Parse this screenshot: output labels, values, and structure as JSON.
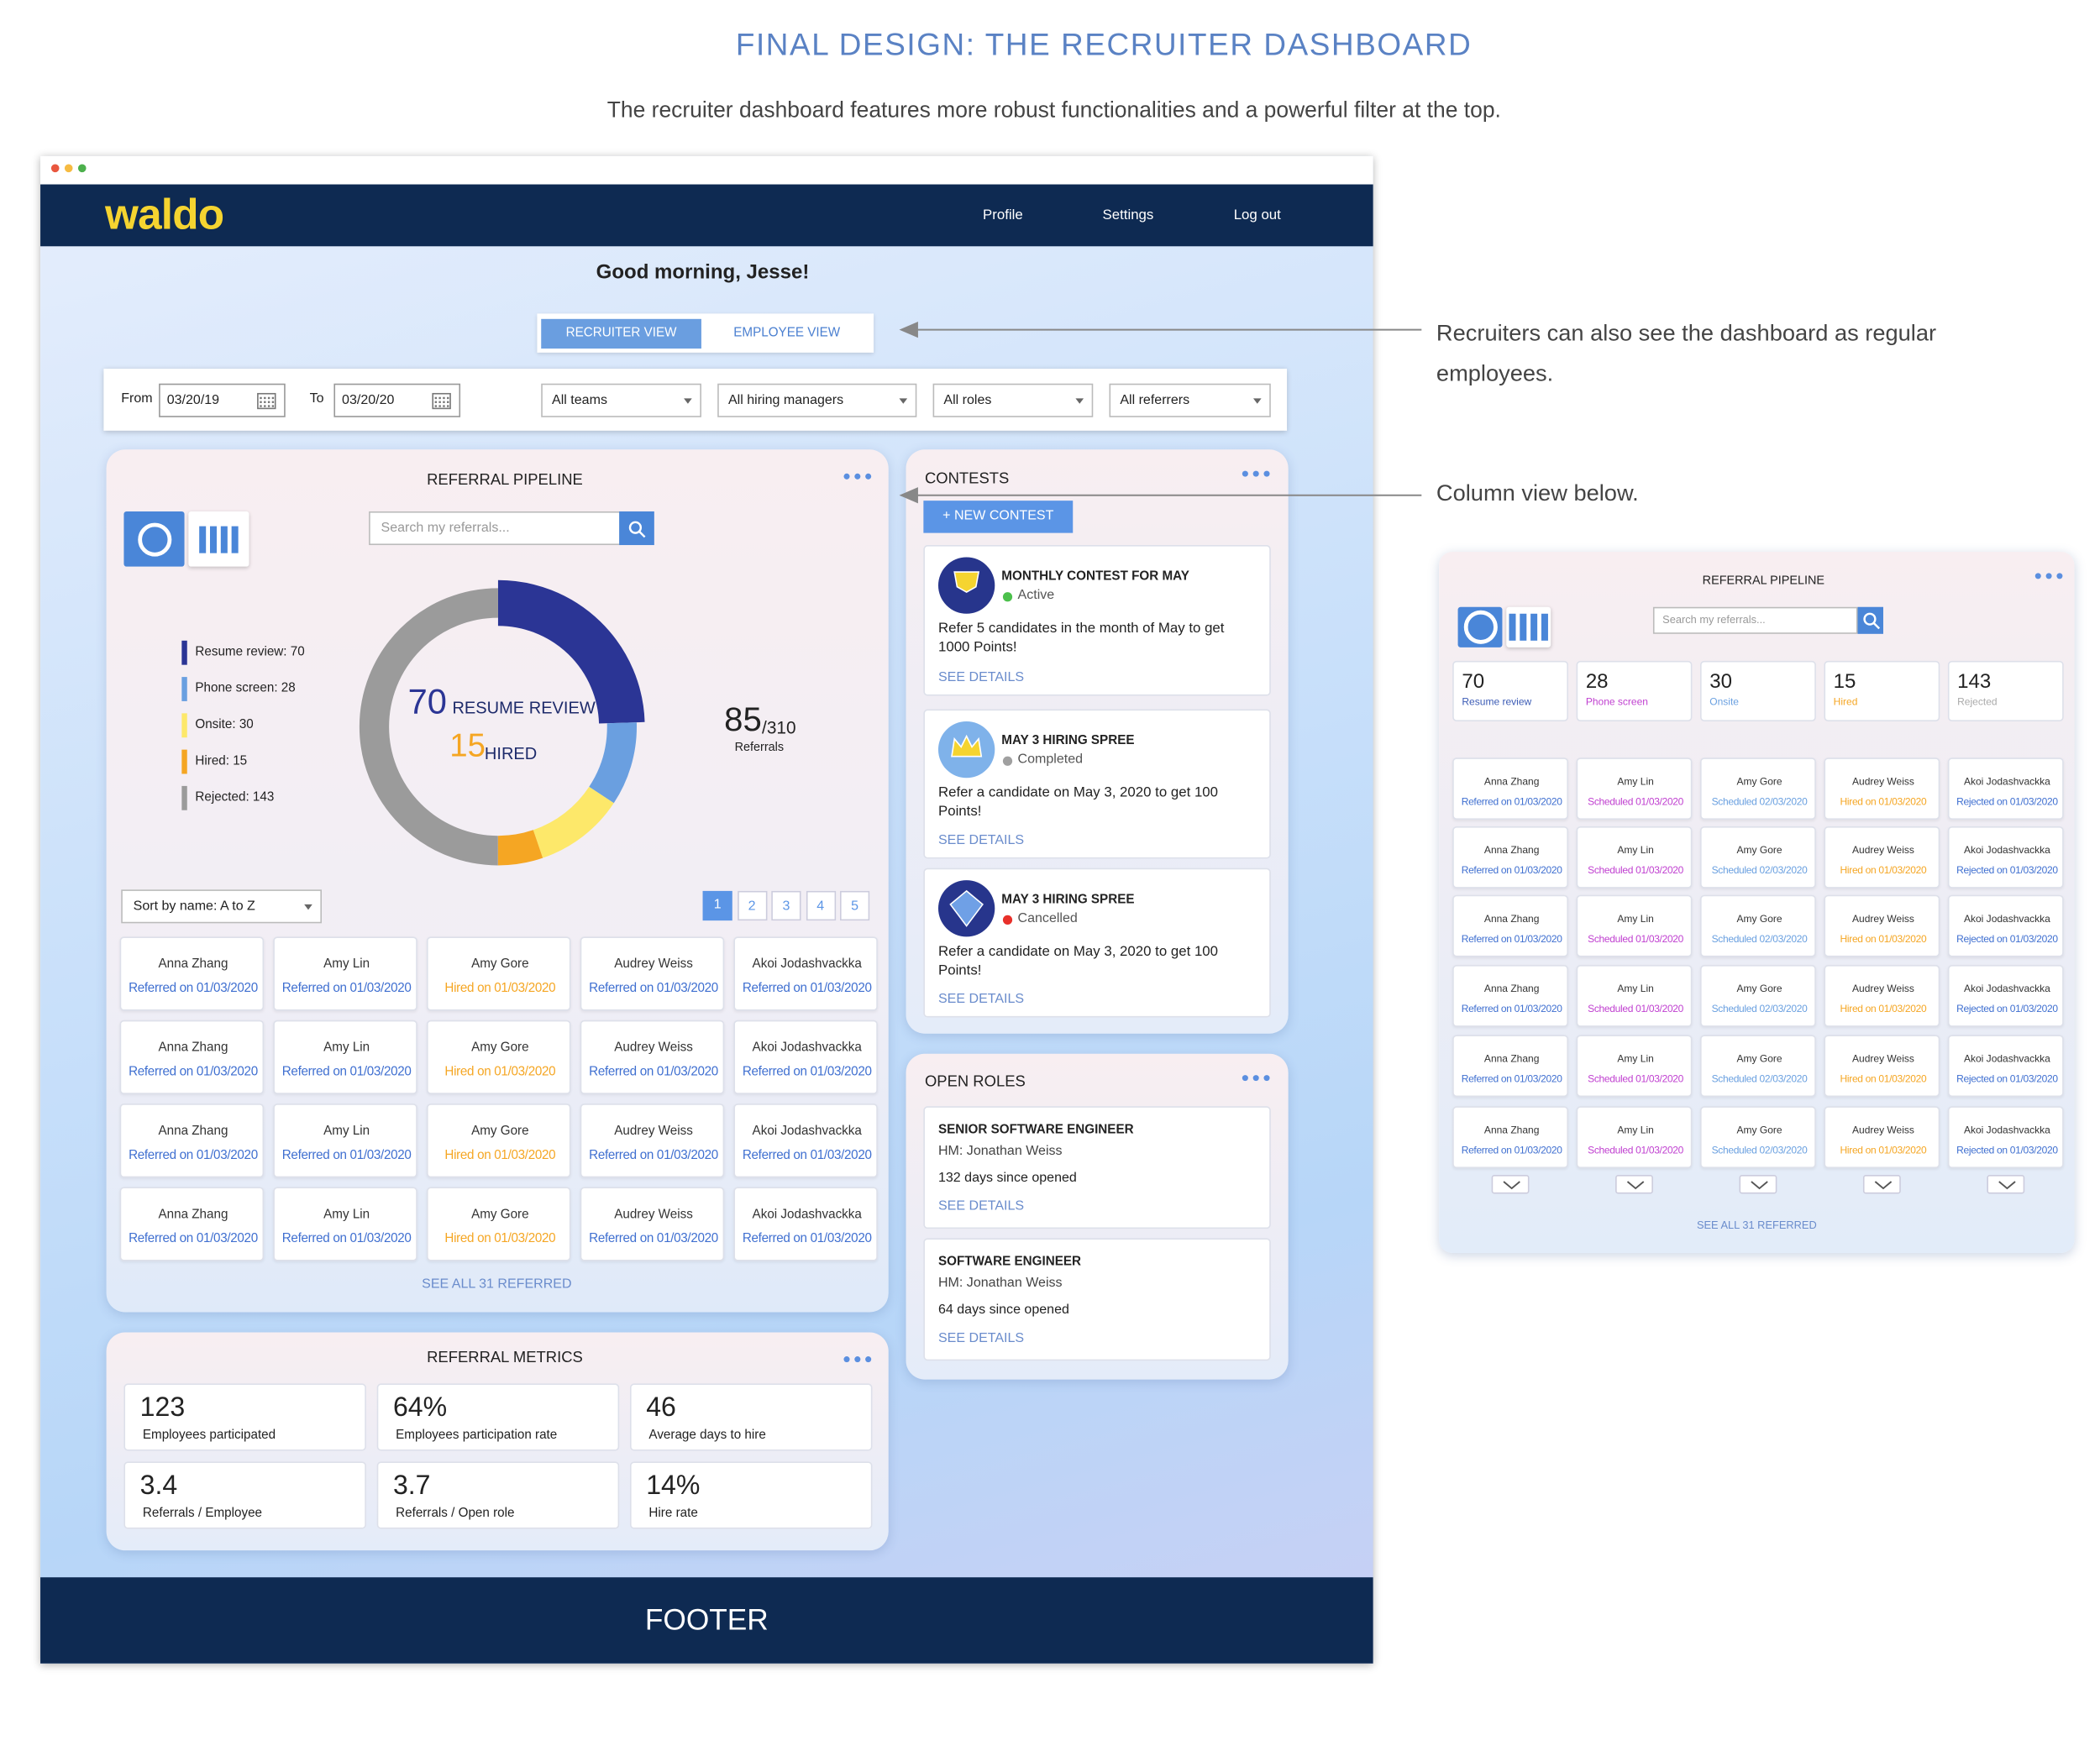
{
  "header": {
    "title": "FINAL DESIGN: THE RECRUITER DASHBOARD",
    "subtitle": "The recruiter dashboard features more robust functionalities and a powerful filter at the top."
  },
  "annotations": [
    "Recruiters can also see the dashboard as regular employees.",
    "Column view below."
  ],
  "app": {
    "logo": "waldo",
    "nav": [
      "Profile",
      "Settings",
      "Log out"
    ],
    "greeting": "Good morning, Jesse!",
    "view_toggle": [
      "RECRUITER VIEW",
      "EMPLOYEE VIEW"
    ],
    "filters": {
      "from_label": "From",
      "from": "03/20/19",
      "to_label": "To",
      "to": "03/20/20",
      "dropdowns": [
        "All teams",
        "All hiring managers",
        "All roles",
        "All referrers"
      ]
    },
    "pipeline": {
      "title": "REFERRAL PIPELINE",
      "search_placeholder": "Search my referrals...",
      "stages": [
        {
          "label": "Resume review: 70",
          "value": 70,
          "color": "#2b3595"
        },
        {
          "label": "Phone screen: 28",
          "value": 28,
          "color": "#6a9fe0"
        },
        {
          "label": "Onsite: 30",
          "value": 30,
          "color": "#fde86a"
        },
        {
          "label": "Hired: 15",
          "value": 15,
          "color": "#f5a623"
        },
        {
          "label": "Rejected: 143",
          "value": 143,
          "color": "#9b9b9b"
        }
      ],
      "center_count": 70,
      "center_label": "RESUME REVIEW",
      "hired_count": 15,
      "hired_label": "HIRED",
      "referrals": 85,
      "referrals_total": "/310",
      "referrals_label": "Referrals",
      "sort": "Sort by name: A to Z",
      "pages": [
        "1",
        "2",
        "3",
        "4",
        "5"
      ],
      "column_colors": [
        "#3f6fd0",
        "#3f6fd0",
        "#f5a623",
        "#3f6fd0",
        "#3f6fd0"
      ],
      "rows": [
        [
          {
            "name": "Anna Zhang",
            "status": "Referred on 01/03/2020"
          },
          {
            "name": "Amy Lin",
            "status": "Referred on 01/03/2020"
          },
          {
            "name": "Amy Gore",
            "status": "Hired on 01/03/2020"
          },
          {
            "name": "Audrey Weiss",
            "status": "Referred on 01/03/2020"
          },
          {
            "name": "Akoi Jodashvackka",
            "status": "Referred on 01/03/2020"
          }
        ],
        [
          {
            "name": "Anna Zhang",
            "status": "Referred on 01/03/2020"
          },
          {
            "name": "Amy Lin",
            "status": "Referred on 01/03/2020"
          },
          {
            "name": "Amy Gore",
            "status": "Hired on 01/03/2020"
          },
          {
            "name": "Audrey Weiss",
            "status": "Referred on 01/03/2020"
          },
          {
            "name": "Akoi Jodashvackka",
            "status": "Referred on 01/03/2020"
          }
        ],
        [
          {
            "name": "Anna Zhang",
            "status": "Referred on 01/03/2020"
          },
          {
            "name": "Amy Lin",
            "status": "Referred on 01/03/2020"
          },
          {
            "name": "Amy Gore",
            "status": "Hired on 01/03/2020"
          },
          {
            "name": "Audrey Weiss",
            "status": "Referred on 01/03/2020"
          },
          {
            "name": "Akoi Jodashvackka",
            "status": "Referred on 01/03/2020"
          }
        ],
        [
          {
            "name": "Anna Zhang",
            "status": "Referred on 01/03/2020"
          },
          {
            "name": "Amy Lin",
            "status": "Referred on 01/03/2020"
          },
          {
            "name": "Amy Gore",
            "status": "Hired on 01/03/2020"
          },
          {
            "name": "Audrey Weiss",
            "status": "Referred on 01/03/2020"
          },
          {
            "name": "Akoi Jodashvackka",
            "status": "Referred on 01/03/2020"
          }
        ]
      ],
      "see_all": "SEE ALL 31 REFERRED"
    },
    "contests": {
      "title": "CONTESTS",
      "button": "+ NEW CONTEST",
      "items": [
        {
          "title": "MONTHLY CONTEST FOR MAY",
          "status": "Active",
          "status_color": "#4cc04c",
          "description": "Refer 5 candidates in the month of May to get 1000 Points!",
          "link": "SEE DETAILS"
        },
        {
          "title": "MAY 3 HIRING SPREE",
          "status": "Completed",
          "status_color": "#a0a0a0",
          "description": "Refer a candidate on May 3, 2020 to get 100 Points!",
          "link": "SEE DETAILS"
        },
        {
          "title": "MAY 3 HIRING SPREE",
          "status": "Cancelled",
          "status_color": "#e8302a",
          "description": "Refer a candidate on May 3, 2020 to get 100 Points!",
          "link": "SEE DETAILS"
        }
      ]
    },
    "open_roles": {
      "title": "OPEN ROLES",
      "items": [
        {
          "title": "SENIOR SOFTWARE ENGINEER",
          "manager": "HM: Jonathan Weiss",
          "age": "132 days since opened",
          "link": "SEE DETAILS"
        },
        {
          "title": "SOFTWARE ENGINEER",
          "manager": "HM: Jonathan Weiss",
          "age": "64 days since opened",
          "link": "SEE DETAILS"
        }
      ]
    },
    "metrics": {
      "title": "REFERRAL METRICS",
      "items": [
        {
          "value": "123",
          "label": "Employees participated"
        },
        {
          "value": "64%",
          "label": "Employees participation rate"
        },
        {
          "value": "46",
          "label": "Average days to hire"
        },
        {
          "value": "3.4",
          "label": "Referrals / Employee"
        },
        {
          "value": "3.7",
          "label": "Referrals / Open role"
        },
        {
          "value": "14%",
          "label": "Hire rate"
        }
      ]
    },
    "footer": "FOOTER"
  },
  "column_view": {
    "title": "REFERRAL PIPELINE",
    "search_placeholder": "Search my referrals...",
    "stages": [
      {
        "count": 70,
        "label": "Resume review",
        "color": "#3b5bb5"
      },
      {
        "count": 28,
        "label": "Phone screen",
        "color": "#c040d0"
      },
      {
        "count": 30,
        "label": "Onsite",
        "color": "#6aa0e0"
      },
      {
        "count": 15,
        "label": "Hired",
        "color": "#f5a623"
      },
      {
        "count": 143,
        "label": "Rejected",
        "color": "#aaaaaa"
      }
    ],
    "column_colors": [
      "#3f6fd0",
      "#c040d0",
      "#6aa0e0",
      "#f5a623",
      "#3f6fd0"
    ],
    "rows": [
      [
        {
          "name": "Anna Zhang",
          "status": "Referred on 01/03/2020"
        },
        {
          "name": "Amy Lin",
          "status": "Scheduled 01/03/2020"
        },
        {
          "name": "Amy Gore",
          "status": "Scheduled 02/03/2020"
        },
        {
          "name": "Audrey Weiss",
          "status": "Hired on 01/03/2020"
        },
        {
          "name": "Akoi Jodashvackka",
          "status": "Rejected on 01/03/2020"
        }
      ],
      [
        {
          "name": "Anna Zhang",
          "status": "Referred on 01/03/2020"
        },
        {
          "name": "Amy Lin",
          "status": "Scheduled 01/03/2020"
        },
        {
          "name": "Amy Gore",
          "status": "Scheduled 02/03/2020"
        },
        {
          "name": "Audrey Weiss",
          "status": "Hired on 01/03/2020"
        },
        {
          "name": "Akoi Jodashvackka",
          "status": "Rejected on 01/03/2020"
        }
      ],
      [
        {
          "name": "Anna Zhang",
          "status": "Referred on 01/03/2020"
        },
        {
          "name": "Amy Lin",
          "status": "Scheduled 01/03/2020"
        },
        {
          "name": "Amy Gore",
          "status": "Scheduled 02/03/2020"
        },
        {
          "name": "Audrey Weiss",
          "status": "Hired on 01/03/2020"
        },
        {
          "name": "Akoi Jodashvackka",
          "status": "Rejected on 01/03/2020"
        }
      ],
      [
        {
          "name": "Anna Zhang",
          "status": "Referred on 01/03/2020"
        },
        {
          "name": "Amy Lin",
          "status": "Scheduled 01/03/2020"
        },
        {
          "name": "Amy Gore",
          "status": "Scheduled 02/03/2020"
        },
        {
          "name": "Audrey Weiss",
          "status": "Hired on 01/03/2020"
        },
        {
          "name": "Akoi Jodashvackka",
          "status": "Rejected on 01/03/2020"
        }
      ],
      [
        {
          "name": "Anna Zhang",
          "status": "Referred on 01/03/2020"
        },
        {
          "name": "Amy Lin",
          "status": "Scheduled 01/03/2020"
        },
        {
          "name": "Amy Gore",
          "status": "Scheduled 02/03/2020"
        },
        {
          "name": "Audrey Weiss",
          "status": "Hired on 01/03/2020"
        },
        {
          "name": "Akoi Jodashvackka",
          "status": "Rejected on 01/03/2020"
        }
      ],
      [
        {
          "name": "Anna Zhang",
          "status": "Referred on 01/03/2020"
        },
        {
          "name": "Amy Lin",
          "status": "Scheduled 01/03/2020"
        },
        {
          "name": "Amy Gore",
          "status": "Scheduled 02/03/2020"
        },
        {
          "name": "Audrey Weiss",
          "status": "Hired on 01/03/2020"
        },
        {
          "name": "Akoi Jodashvackka",
          "status": "Rejected on 01/03/2020"
        }
      ]
    ],
    "see_all": "SEE ALL 31 REFERRED"
  }
}
